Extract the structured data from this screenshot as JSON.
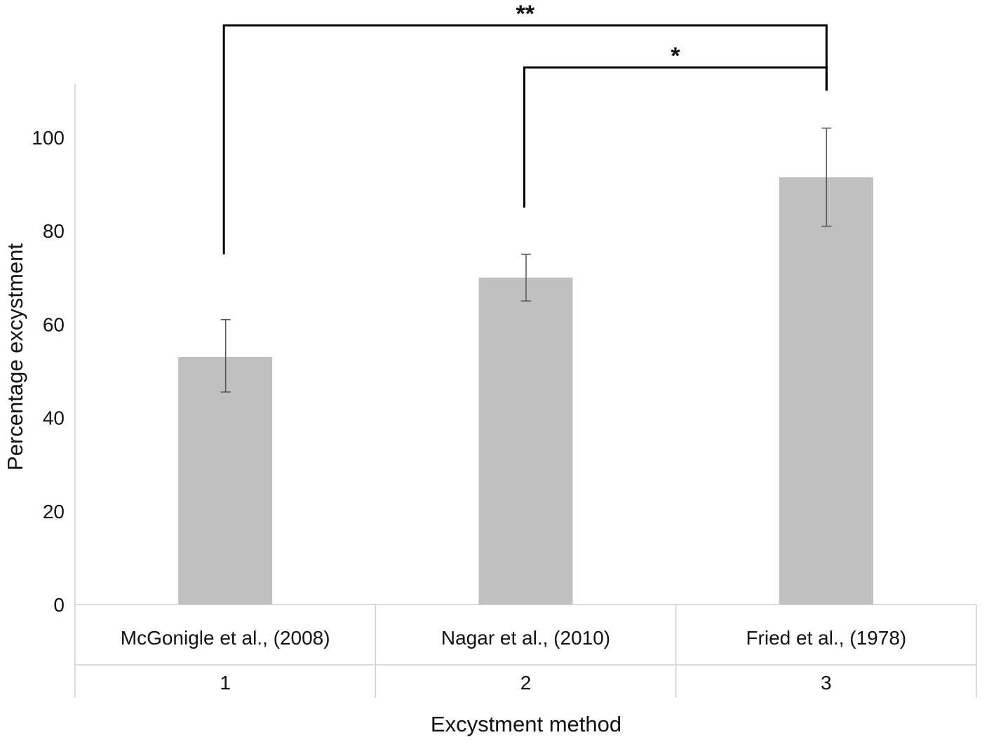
{
  "chart_data": {
    "type": "bar",
    "categories": [
      {
        "label": "McGonigle et al., (2008)",
        "index_label": "1"
      },
      {
        "label": "Nagar et al., (2010)",
        "index_label": "2"
      },
      {
        "label": "Fried et al., (1978)",
        "index_label": "3"
      }
    ],
    "values": [
      53,
      70,
      91.5
    ],
    "error_bars": [
      {
        "low": 45.5,
        "high": 61
      },
      {
        "low": 65,
        "high": 75
      },
      {
        "low": 81,
        "high": 102
      }
    ],
    "xlabel": "Excystment method",
    "ylabel": "Percentage excystment",
    "ylim": [
      0,
      110
    ],
    "yticks": [
      0,
      20,
      40,
      60,
      80,
      100
    ],
    "grid": false,
    "legend": "none",
    "significance": [
      {
        "from_category": 0,
        "to_category": 2,
        "label": "**",
        "left_start": 75,
        "right_start": 110,
        "bar_level": 124
      },
      {
        "from_category": 1,
        "to_category": 2,
        "label": "*",
        "left_start": 85,
        "right_start": 110,
        "bar_level": 115
      }
    ],
    "colors": {
      "bar": "#c0c0c0",
      "error_bar": "#555555",
      "axis": "#d0d0d0",
      "bracket": "#000000"
    }
  }
}
